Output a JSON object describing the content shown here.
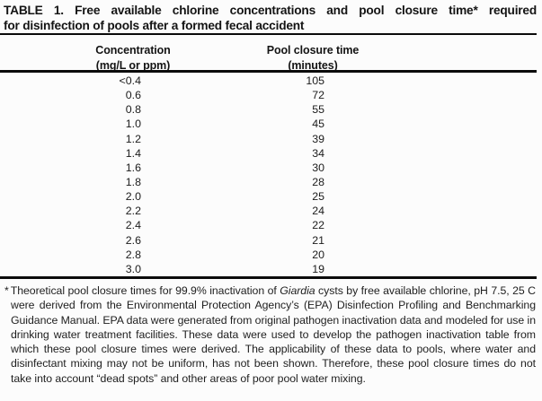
{
  "title": {
    "line1": "TABLE 1. Free available chlorine concentrations and pool closure time* required",
    "line2": "for disinfection of pools after a formed fecal accident"
  },
  "table": {
    "columns": [
      {
        "label": "Concentration",
        "unit": "(mg/L or ppm)"
      },
      {
        "label": "Pool closure time",
        "unit": "(minutes)"
      }
    ],
    "rows": [
      {
        "concentration": "<0.4",
        "closure_time": "105"
      },
      {
        "concentration": "0.6",
        "closure_time": "72"
      },
      {
        "concentration": "0.8",
        "closure_time": "55"
      },
      {
        "concentration": "1.0",
        "closure_time": "45"
      },
      {
        "concentration": "1.2",
        "closure_time": "39"
      },
      {
        "concentration": "1.4",
        "closure_time": "34"
      },
      {
        "concentration": "1.6",
        "closure_time": "30"
      },
      {
        "concentration": "1.8",
        "closure_time": "28"
      },
      {
        "concentration": "2.0",
        "closure_time": "25"
      },
      {
        "concentration": "2.2",
        "closure_time": "24"
      },
      {
        "concentration": "2.4",
        "closure_time": "22"
      },
      {
        "concentration": "2.6",
        "closure_time": "21"
      },
      {
        "concentration": "2.8",
        "closure_time": "20"
      },
      {
        "concentration": "3.0",
        "closure_time": "19"
      }
    ]
  },
  "footnote": {
    "marker": "*",
    "text_before_italic": "Theoretical pool closure times for 99.9% inactivation of ",
    "italic_term": "Giardia",
    "text_after_italic": " cysts by free available chlorine, pH 7.5, 25 C were derived from the Environmental Protection Agency’s (EPA) Disinfection Profiling and Benchmarking Guidance Manual. EPA data were generated from original pathogen inactivation data and modeled for use in drinking water treatment facilities. These data were used to develop the pathogen inactivation table from which these pool closure times were derived. The applicability of these data to pools, where water and disinfectant mixing may not be uniform, has not been shown. Therefore, these pool closure times do not take into account “dead spots” and other areas of poor pool water mixing."
  },
  "colors": {
    "background": "#fcfcfc",
    "text": "#1b1b1b",
    "rule": "#0b0b0b"
  }
}
